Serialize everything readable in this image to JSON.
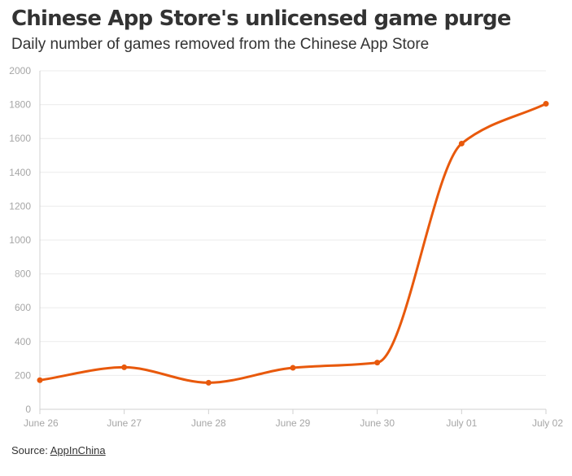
{
  "chart_data": {
    "type": "line",
    "title": "Chinese App Store's unlicensed game purge",
    "subtitle": "Daily number of games removed from the Chinese App Store",
    "categories": [
      "June 26",
      "June 27",
      "June 28",
      "June 29",
      "June 30",
      "July 01",
      "July 02"
    ],
    "series": [
      {
        "values": [
          172,
          248,
          157,
          245,
          276,
          1570,
          1805
        ]
      }
    ],
    "ylim": [
      0,
      2000
    ],
    "yticks": [
      0,
      200,
      400,
      600,
      800,
      1000,
      1200,
      1400,
      1600,
      1800,
      2000
    ],
    "grid": true,
    "line_color": "#e8590c"
  },
  "source": {
    "label": "Source: ",
    "link_text": "AppInChina"
  }
}
